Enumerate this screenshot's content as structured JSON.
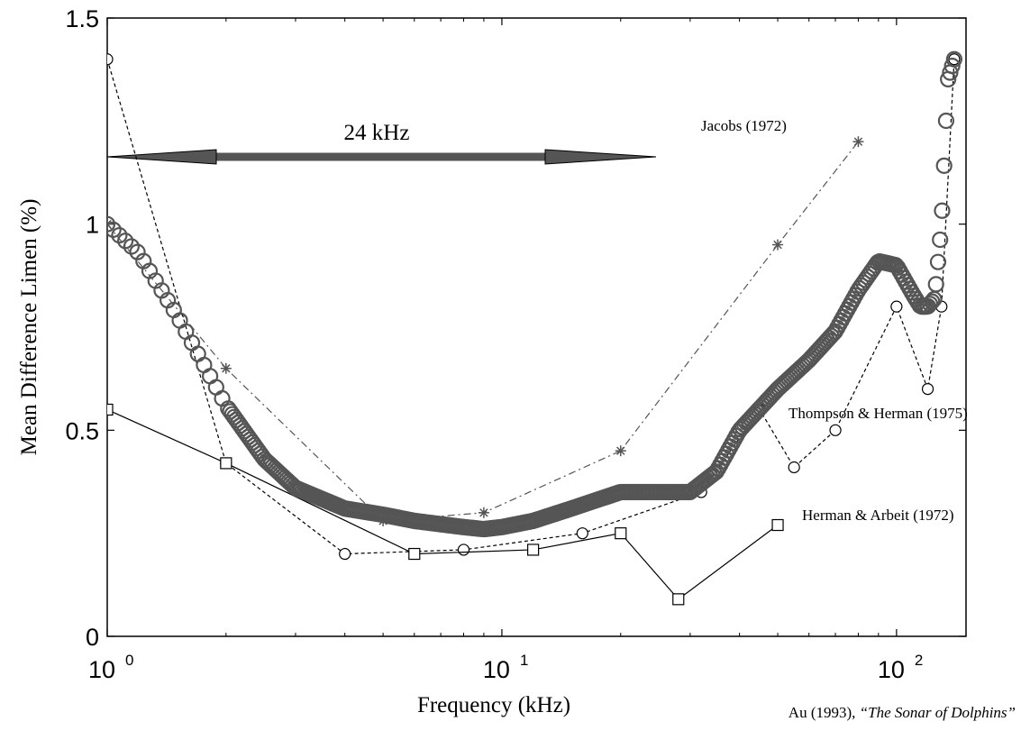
{
  "chart_data": {
    "type": "line",
    "title": "",
    "xlabel": "Frequency (kHz)",
    "ylabel": "Mean Difference Limen (%)",
    "xscale": "log",
    "xlim": [
      1,
      150
    ],
    "ylim": [
      0,
      1.5
    ],
    "grid": false,
    "x_ticks": [
      {
        "value": 1,
        "base": "10",
        "exp": "0"
      },
      {
        "value": 10,
        "base": "10",
        "exp": "1"
      },
      {
        "value": 100,
        "base": "10",
        "exp": "2"
      }
    ],
    "y_ticks": [
      {
        "value": 0,
        "label": "0"
      },
      {
        "value": 0.5,
        "label": "0.5"
      },
      {
        "value": 1,
        "label": "1"
      },
      {
        "value": 1.5,
        "label": "1.5"
      }
    ],
    "series": [
      {
        "name": "Jacobs (1972)",
        "marker": "asterisk",
        "line": "dash-dot",
        "color": "#555555",
        "x": [
          1,
          2,
          5,
          9,
          20,
          50,
          80
        ],
        "y": [
          1.0,
          0.65,
          0.28,
          0.3,
          0.45,
          0.95,
          1.2
        ]
      },
      {
        "name": "Thompson & Herman (1975)",
        "marker": "circle",
        "line": "dashed",
        "color": "#000000",
        "x": [
          1,
          2,
          4,
          8,
          16,
          32,
          45,
          55,
          70,
          100,
          120,
          130,
          140
        ],
        "y": [
          1.4,
          0.42,
          0.2,
          0.21,
          0.25,
          0.35,
          0.55,
          0.41,
          0.5,
          0.8,
          0.6,
          0.8,
          1.4
        ]
      },
      {
        "name": "Herman & Arbeit (1972)",
        "marker": "square",
        "line": "solid",
        "color": "#000000",
        "x": [
          1,
          2,
          6,
          12,
          20,
          28,
          50
        ],
        "y": [
          0.55,
          0.42,
          0.2,
          0.21,
          0.25,
          0.09,
          0.27
        ]
      },
      {
        "name": "",
        "marker": "circle-dense",
        "line": "none",
        "color": "#555555",
        "x": [
          1,
          1.2,
          1.5,
          2,
          2.5,
          3,
          4,
          5,
          6,
          8,
          9,
          10,
          12,
          15,
          20,
          25,
          30,
          35,
          40,
          50,
          60,
          70,
          80,
          90,
          100,
          110,
          115,
          120,
          125,
          130,
          135,
          140
        ],
        "y": [
          1.0,
          0.93,
          0.78,
          0.56,
          0.43,
          0.36,
          0.31,
          0.295,
          0.28,
          0.265,
          0.26,
          0.265,
          0.28,
          0.31,
          0.35,
          0.35,
          0.35,
          0.4,
          0.5,
          0.6,
          0.67,
          0.74,
          0.84,
          0.91,
          0.9,
          0.83,
          0.8,
          0.8,
          0.82,
          1.0,
          1.35,
          1.4
        ]
      }
    ],
    "annotations": {
      "arrow_label": "24 kHz",
      "source_author": "Au (1993),",
      "source_title": "“The Sonar of Dolphins”"
    }
  }
}
